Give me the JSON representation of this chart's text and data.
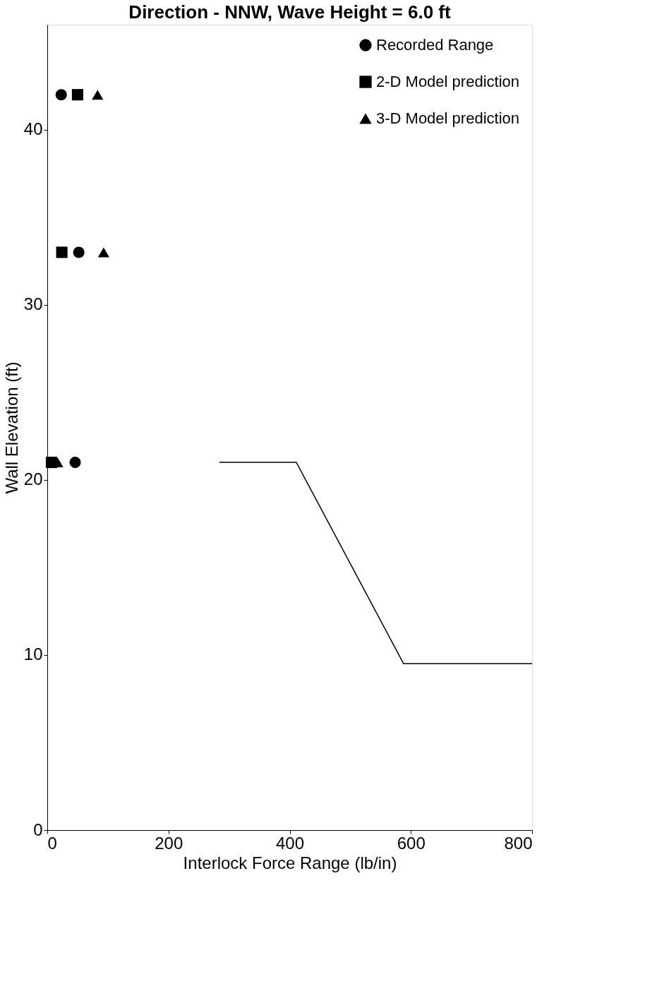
{
  "chart_data": {
    "type": "scatter",
    "title": "Direction - NNW, Wave Height = 6.0 ft",
    "xlabel": "Interlock Force Range (lb/in)",
    "ylabel": "Wall Elevation (ft)",
    "xlim": [
      0,
      800
    ],
    "xticks": [
      0,
      200,
      400,
      600,
      800
    ],
    "ylim": [
      0,
      46
    ],
    "yticks": [
      0,
      10,
      20,
      30,
      40
    ],
    "grid": false,
    "legend": "top right",
    "series": [
      {
        "name": "Recorded Range",
        "color": "#000000",
        "marker": "circle",
        "x": [
          23,
          52,
          46
        ],
        "values": [
          42,
          33,
          21
        ]
      },
      {
        "name": "2-D Model prediction",
        "color": "#000000",
        "marker": "square",
        "x": [
          50,
          24,
          7
        ],
        "values": [
          42,
          33,
          21
        ]
      },
      {
        "name": "3-D Model prediction",
        "color": "#000000",
        "marker": "triangle",
        "x": [
          83,
          93,
          17
        ],
        "values": [
          42,
          33,
          21
        ]
      },
      {
        "type": "line",
        "color": "#000000",
        "line_style": "solid",
        "x": [
          284,
          411,
          588,
          800
        ],
        "values": [
          21,
          21,
          9.5,
          9.5
        ]
      }
    ]
  }
}
